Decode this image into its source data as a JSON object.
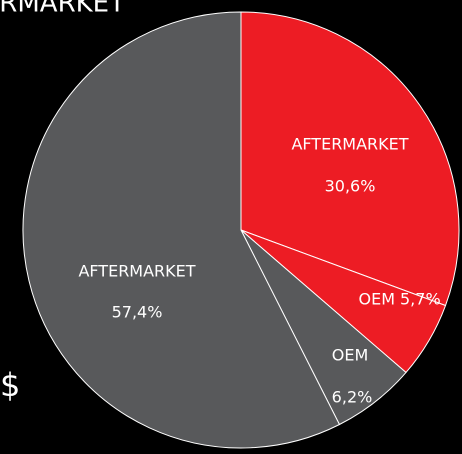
{
  "chart_data": {
    "type": "pie",
    "title": "AFTERMARKET",
    "categories": [
      "AFTERMARKET",
      "OEM",
      "OEM",
      "AFTERMARKET"
    ],
    "values": [
      30.6,
      5.7,
      6.2,
      57.4
    ],
    "value_labels": [
      "30,6%",
      "5,7%",
      "6,2%",
      "57,4%"
    ],
    "colors": [
      "#ed1c24",
      "#ed1c24",
      "#58595b",
      "#58595b"
    ],
    "annotation": "$"
  }
}
